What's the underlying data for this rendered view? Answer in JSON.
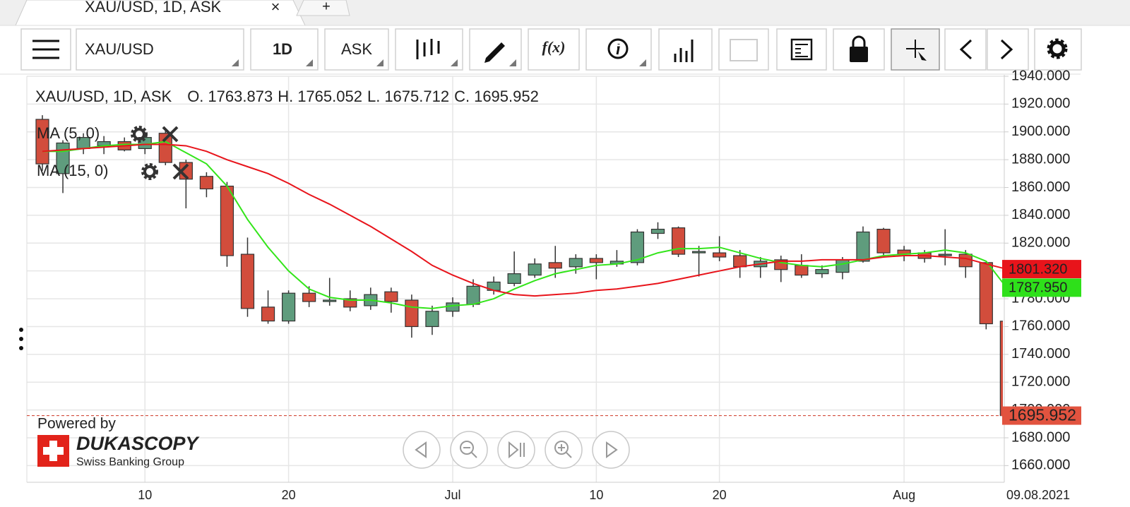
{
  "tabs": [
    {
      "label": "XAU/USD, 1D, ASK",
      "close": "×"
    },
    {
      "label": "+"
    }
  ],
  "toolbar": {
    "instrument": "XAU/USD",
    "period": "1D",
    "side": "ASK",
    "function": "f(x)"
  },
  "branding": {
    "powered": "Powered by",
    "name": "DUKASCOPY",
    "tagline": "Swiss Banking Group"
  },
  "chart_data": {
    "type": "candlestick",
    "title": "XAU/USD, 1D, ASK",
    "ohlc_labels": [
      "O.",
      "H.",
      "L.",
      "C."
    ],
    "categories": [
      null,
      null,
      null,
      null,
      null,
      "10",
      null,
      null,
      null,
      null,
      null,
      null,
      "20",
      null,
      null,
      null,
      null,
      null,
      null,
      null,
      "Jul",
      null,
      null,
      null,
      null,
      null,
      null,
      "10",
      null,
      null,
      null,
      null,
      null,
      "20",
      null,
      null,
      null,
      null,
      null,
      null,
      null,
      null,
      "Aug",
      null,
      null,
      null,
      null,
      "09.08.2021"
    ],
    "open": [
      1909,
      1870,
      1888,
      1890,
      1893,
      1888,
      1899,
      1878,
      1868,
      1861,
      1812,
      1774,
      1764,
      1784,
      1778,
      1780,
      1775,
      1785,
      1779,
      1760,
      1771,
      1776,
      1786,
      1791,
      1797,
      1806,
      1803,
      1809,
      1805,
      1806,
      1827,
      1831,
      1813,
      1813,
      1811,
      1803,
      1808,
      1804,
      1798,
      1799,
      1807,
      1830,
      1815,
      1813,
      1811,
      1812,
      1806,
      1763.873
    ],
    "high": [
      1912,
      1894,
      1899,
      1897,
      1896,
      1900,
      1902,
      1880,
      1871,
      1864,
      1824,
      1786,
      1786,
      1789,
      1795,
      1786,
      1788,
      1788,
      1783,
      1775,
      1781,
      1794,
      1796,
      1814,
      1809,
      1818,
      1812,
      1812,
      1815,
      1830,
      1835,
      1832,
      1818,
      1825,
      1815,
      1810,
      1811,
      1812,
      1804,
      1810,
      1832,
      1831,
      1818,
      1815,
      1830,
      1815,
      1806,
      1765.052
    ],
    "low": [
      1872,
      1856,
      1884,
      1884,
      1886,
      1884,
      1876,
      1845,
      1853,
      1803,
      1767,
      1762,
      1762,
      1774,
      1775,
      1771,
      1772,
      1770,
      1752,
      1754,
      1767,
      1774,
      1783,
      1789,
      1795,
      1795,
      1798,
      1794,
      1803,
      1804,
      1823,
      1810,
      1796,
      1807,
      1795,
      1795,
      1792,
      1795,
      1795,
      1794,
      1806,
      1810,
      1807,
      1806,
      1804,
      1795,
      1758,
      1675.712
    ],
    "close": [
      1877,
      1892,
      1896,
      1893,
      1887,
      1896,
      1878,
      1866,
      1859,
      1811,
      1773,
      1764,
      1784,
      1778,
      1779,
      1774,
      1783,
      1778,
      1760,
      1771,
      1777,
      1789,
      1792,
      1798,
      1805,
      1802,
      1809,
      1806,
      1807,
      1828,
      1830,
      1812,
      1814,
      1810,
      1803,
      1807,
      1801,
      1797,
      1801,
      1808,
      1828,
      1813,
      1812,
      1809,
      1812,
      1803,
      1762,
      1695.952
    ],
    "up_color": "#5f9c7d",
    "down_color": "#d24d3c",
    "overlays": [
      {
        "name": "MA (5, 0)",
        "color": "#33e51a",
        "values": [
          1886,
          1886,
          1888,
          1890,
          1891,
          1891,
          1893,
          1885,
          1877,
          1861,
          1837,
          1817,
          1800,
          1787,
          1781,
          1779,
          1779,
          1777,
          1774,
          1773,
          1775,
          1776,
          1780,
          1787,
          1793,
          1798,
          1801,
          1804,
          1805,
          1808,
          1813,
          1816,
          1816,
          1817,
          1813,
          1809,
          1806,
          1804,
          1803,
          1805,
          1808,
          1811,
          1812,
          1813,
          1815,
          1813,
          1807,
          1787.95
        ],
        "value_labels": [
          null,
          null,
          null,
          null,
          null,
          null,
          null,
          null,
          null,
          null,
          null,
          null,
          null,
          null,
          null,
          null,
          null,
          null,
          null,
          null,
          null,
          null,
          null,
          null,
          null,
          null,
          null,
          null,
          null,
          null,
          null,
          null,
          null,
          null,
          null,
          null,
          null,
          null,
          null,
          null,
          null,
          null,
          null,
          null,
          null,
          null,
          null,
          "1787.950"
        ]
      },
      {
        "name": "MA (15, 0)",
        "color": "#e8141b",
        "values": [
          1886,
          1887,
          1888,
          1889,
          1890,
          1891,
          1891,
          1890,
          1886,
          1880,
          1875,
          1870,
          1863,
          1855,
          1848,
          1840,
          1832,
          1823,
          1814,
          1804,
          1797,
          1791,
          1786,
          1783,
          1782,
          1783,
          1784,
          1786,
          1787,
          1789,
          1791,
          1794,
          1797,
          1800,
          1803,
          1805,
          1807,
          1807,
          1808,
          1808,
          1808,
          1810,
          1811,
          1811,
          1810,
          1809,
          1805,
          1801.32
        ],
        "value_labels": [
          null,
          null,
          null,
          null,
          null,
          null,
          null,
          null,
          null,
          null,
          null,
          null,
          null,
          null,
          null,
          null,
          null,
          null,
          null,
          null,
          null,
          null,
          null,
          null,
          null,
          null,
          null,
          null,
          null,
          null,
          null,
          null,
          null,
          null,
          null,
          null,
          null,
          null,
          null,
          null,
          null,
          null,
          null,
          null,
          null,
          null,
          null,
          "1801.320"
        ]
      }
    ],
    "ylim": [
      1648,
      1940
    ],
    "yticks": [
      {
        "value": 1660,
        "label": "1660.000"
      },
      {
        "value": 1680,
        "label": "1680.000"
      },
      {
        "value": 1700,
        "label": "1700.000"
      },
      {
        "value": 1720,
        "label": "1720.000"
      },
      {
        "value": 1740,
        "label": "1740.000"
      },
      {
        "value": 1760,
        "label": "1760.000"
      },
      {
        "value": 1780,
        "label": "1780.000"
      },
      {
        "value": 1800,
        "label": "1800.000"
      },
      {
        "value": 1820,
        "label": "1820.000"
      },
      {
        "value": 1840,
        "label": "1840.000"
      },
      {
        "value": 1860,
        "label": "1860.000"
      },
      {
        "value": 1880,
        "label": "1880.000"
      },
      {
        "value": 1900,
        "label": "1900.000"
      },
      {
        "value": 1920,
        "label": "1920.000"
      },
      {
        "value": 1940,
        "label": "1940.000"
      }
    ],
    "grid": true
  }
}
